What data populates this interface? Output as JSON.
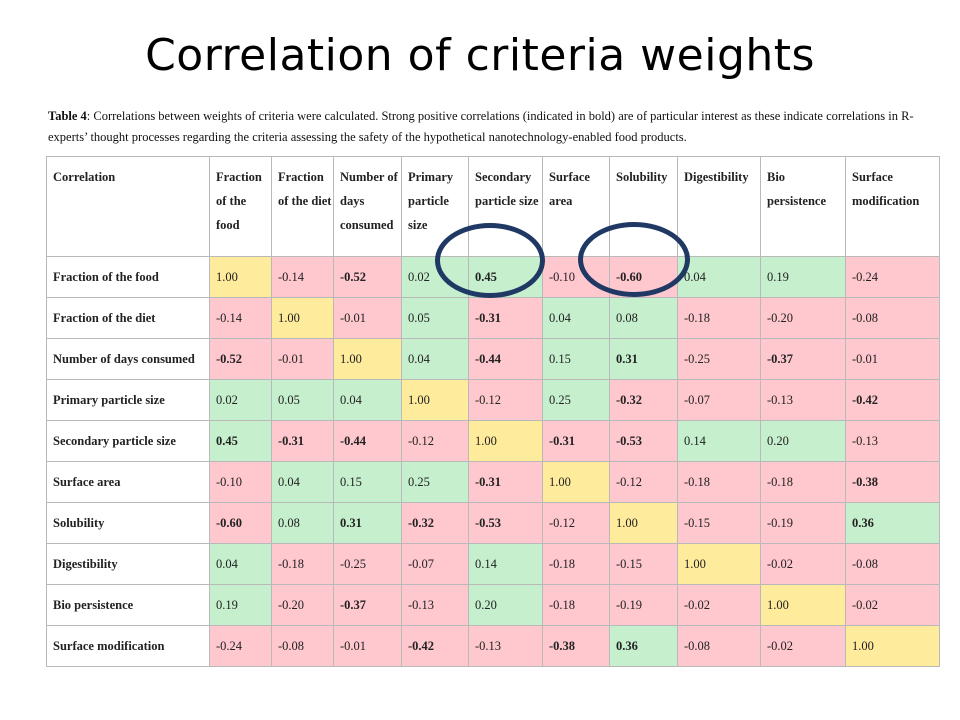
{
  "title": "Correlation of criteria weights",
  "caption": {
    "label": "Table 4",
    "text": ": Correlations between weights of criteria were calculated. Strong positive correlations (indicated in bold) are of particular interest as these indicate correlations in R-experts’ thought processes regarding the criteria assessing the safety of the hypothetical nanotechnology-enabled food products."
  },
  "table": {
    "headers": [
      "Correlation",
      "Fraction of the food",
      "Fraction of the diet",
      "Number of days consumed",
      "Primary particle size",
      "Secondary particle size",
      "Surface area",
      "Solubility",
      "Digestibility",
      "Bio persistence",
      "Surface modification"
    ],
    "rows": [
      {
        "label": "Fraction of the food",
        "values": [
          "1.00",
          "-0.14",
          "-0.52",
          "0.02",
          "0.45",
          "-0.10",
          "-0.60",
          "0.04",
          "0.19",
          "-0.24"
        ]
      },
      {
        "label": "Fraction of the diet",
        "values": [
          "-0.14",
          "1.00",
          "-0.01",
          "0.05",
          "-0.31",
          "0.04",
          "0.08",
          "-0.18",
          "-0.20",
          "-0.08"
        ]
      },
      {
        "label": "Number of days consumed",
        "values": [
          "-0.52",
          "-0.01",
          "1.00",
          "0.04",
          "-0.44",
          "0.15",
          "0.31",
          "-0.25",
          "-0.37",
          "-0.01"
        ]
      },
      {
        "label": "Primary particle size",
        "values": [
          "0.02",
          "0.05",
          "0.04",
          "1.00",
          "-0.12",
          "0.25",
          "-0.32",
          "-0.07",
          "-0.13",
          "-0.42"
        ]
      },
      {
        "label": "Secondary particle size",
        "values": [
          "0.45",
          "-0.31",
          "-0.44",
          "-0.12",
          "1.00",
          "-0.31",
          "-0.53",
          "0.14",
          "0.20",
          "-0.13"
        ]
      },
      {
        "label": "Surface area",
        "values": [
          "-0.10",
          "0.04",
          "0.15",
          "0.25",
          "-0.31",
          "1.00",
          "-0.12",
          "-0.18",
          "-0.18",
          "-0.38"
        ]
      },
      {
        "label": "Solubility",
        "values": [
          "-0.60",
          "0.08",
          "0.31",
          "-0.32",
          "-0.53",
          "-0.12",
          "1.00",
          "-0.15",
          "-0.19",
          "0.36"
        ]
      },
      {
        "label": "Digestibility",
        "values": [
          "0.04",
          "-0.18",
          "-0.25",
          "-0.07",
          "0.14",
          "-0.18",
          "-0.15",
          "1.00",
          "-0.02",
          "-0.08"
        ]
      },
      {
        "label": "Bio persistence",
        "values": [
          "0.19",
          "-0.20",
          "-0.37",
          "-0.13",
          "0.20",
          "-0.18",
          "-0.19",
          "-0.02",
          "1.00",
          "-0.02"
        ]
      },
      {
        "label": "Surface modification",
        "values": [
          "-0.24",
          "-0.08",
          "-0.01",
          "-0.42",
          "-0.13",
          "-0.38",
          "0.36",
          "-0.08",
          "-0.02",
          "1.00"
        ]
      }
    ],
    "bold_values": [
      "-0.52",
      "0.45",
      "-0.60",
      "-0.44",
      "-0.31",
      "0.31",
      "-0.37",
      "-0.32",
      "-0.42",
      "-0.53",
      "-0.38",
      "0.36"
    ],
    "colors": {
      "positive": "#c6efce",
      "negative": "#ffc7ce",
      "diagonal": "#ffeb9c"
    }
  },
  "highlight": {
    "color": "#1f3864",
    "circled": [
      "Secondary particle size",
      "Solubility"
    ]
  }
}
